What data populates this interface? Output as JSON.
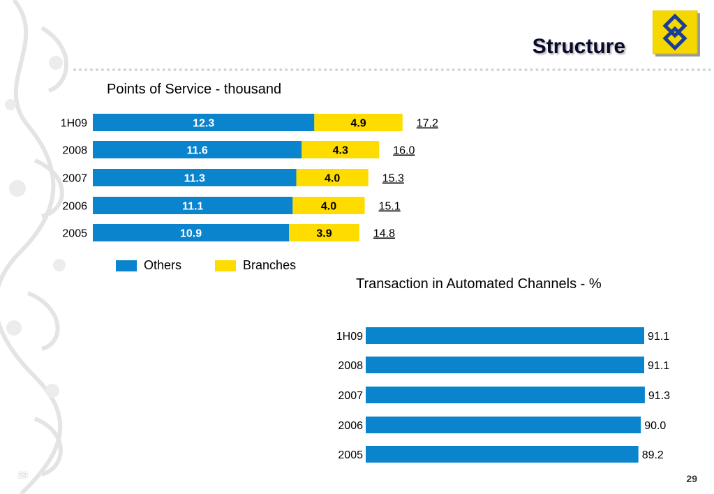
{
  "header": {
    "title": "Structure",
    "logo_icon": "banco-do-brasil-logo-icon",
    "brand_color": "#F5D800"
  },
  "colors": {
    "others": "#0A84CC",
    "branches": "#FEDC00",
    "automated": "#0A84CC"
  },
  "chart_data": [
    {
      "type": "bar",
      "orientation": "horizontal",
      "stacked": true,
      "title": "Points of Service - thousand",
      "categories": [
        "1H09",
        "2008",
        "2007",
        "2006",
        "2005"
      ],
      "series": [
        {
          "name": "Others",
          "values": [
            12.3,
            11.6,
            11.3,
            11.1,
            10.9
          ]
        },
        {
          "name": "Branches",
          "values": [
            4.9,
            4.3,
            4.0,
            4.0,
            3.9
          ]
        }
      ],
      "totals": [
        "17.2",
        "16.0",
        "15.3",
        "15.1",
        "14.8"
      ],
      "legend": "bottom-left"
    },
    {
      "type": "bar",
      "orientation": "horizontal",
      "stacked": false,
      "title": "Transaction in Automated Channels - %",
      "categories": [
        "1H09",
        "2008",
        "2007",
        "2006",
        "2005"
      ],
      "series": [
        {
          "values": [
            91.1,
            91.1,
            91.3,
            90.0,
            89.2
          ]
        }
      ]
    }
  ],
  "footer": {
    "page_number": "29",
    "page_number_faint": "29"
  }
}
